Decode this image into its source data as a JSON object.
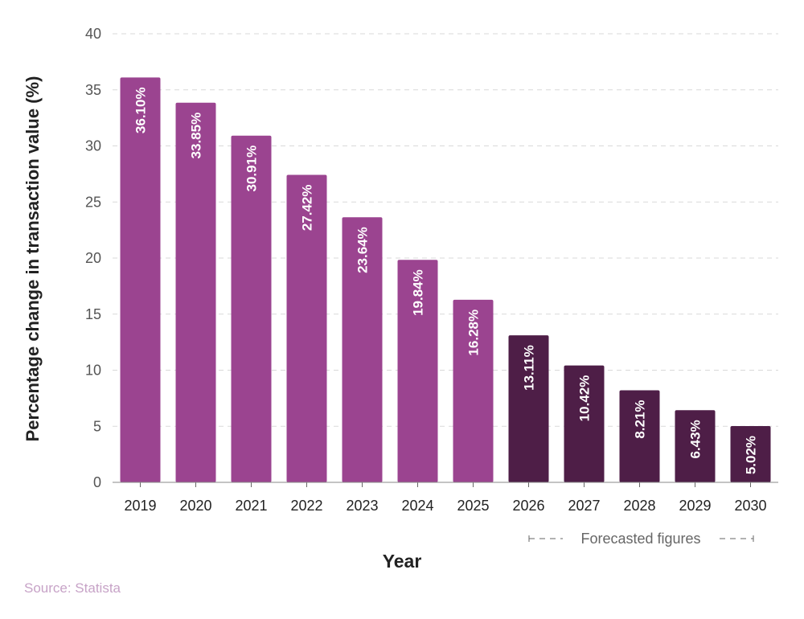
{
  "chart_data": {
    "type": "bar",
    "categories": [
      "2019",
      "2020",
      "2021",
      "2022",
      "2023",
      "2024",
      "2025",
      "2026",
      "2027",
      "2028",
      "2029",
      "2030"
    ],
    "values": [
      36.1,
      33.85,
      30.91,
      27.42,
      23.64,
      19.84,
      16.28,
      13.11,
      10.42,
      8.21,
      6.43,
      5.02
    ],
    "data_labels": [
      "36.10%",
      "33.85%",
      "30.91%",
      "27.42%",
      "23.64%",
      "19.84%",
      "16.28%",
      "13.11%",
      "10.42%",
      "8.21%",
      "6.43%",
      "5.02%"
    ],
    "forecast_from_index": 7,
    "xlabel": "Year",
    "ylabel": "Percentage change in transaction value (%)",
    "ylim": [
      0,
      40
    ],
    "yticks": [
      0,
      5,
      10,
      15,
      20,
      25,
      30,
      35,
      40
    ],
    "grid": true,
    "forecast_label": "Forecasted figures",
    "colors": {
      "actual": "#9b4490",
      "forecast": "#4e1e47",
      "grid": "#d9d9d9",
      "tick_text": "#555555",
      "axis_title": "#222222"
    }
  },
  "source": "Source: Statista"
}
